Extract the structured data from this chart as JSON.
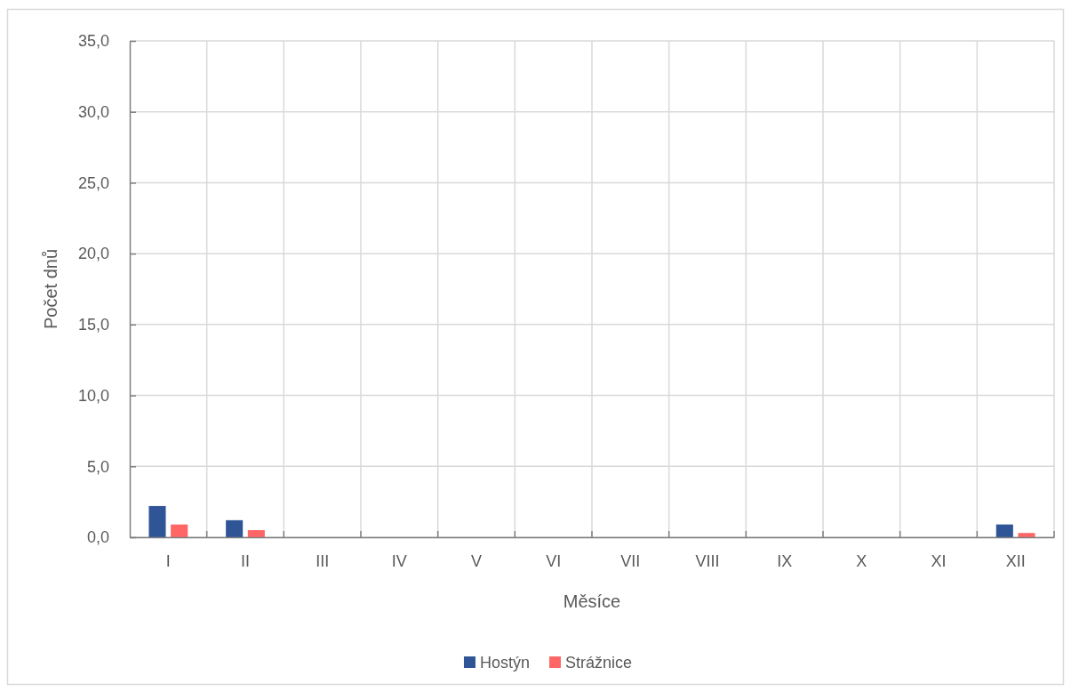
{
  "chart_data": {
    "type": "bar",
    "xlabel": "Měsíce",
    "ylabel": "Počet dnů",
    "categories": [
      "I",
      "II",
      "III",
      "IV",
      "V",
      "VI",
      "VII",
      "VIII",
      "IX",
      "X",
      "XI",
      "XII"
    ],
    "series": [
      {
        "name": "Hostýn",
        "color": "#2f5597",
        "values": [
          2.2,
          1.2,
          0,
          0,
          0,
          0,
          0,
          0,
          0,
          0,
          0,
          0.9
        ]
      },
      {
        "name": "Strážnice",
        "color": "#ff6666",
        "values": [
          0.9,
          0.5,
          0,
          0,
          0,
          0,
          0,
          0,
          0,
          0,
          0,
          0.3
        ]
      }
    ],
    "ylim": [
      0,
      35
    ],
    "yticks": [
      {
        "value": 0,
        "label": "0,0"
      },
      {
        "value": 5,
        "label": "5,0"
      },
      {
        "value": 10,
        "label": "10,0"
      },
      {
        "value": 15,
        "label": "15,0"
      },
      {
        "value": 20,
        "label": "20,0"
      },
      {
        "value": 25,
        "label": "25,0"
      },
      {
        "value": 30,
        "label": "30,0"
      },
      {
        "value": 35,
        "label": "35,0"
      }
    ],
    "grid": true,
    "legend": "bottom"
  }
}
